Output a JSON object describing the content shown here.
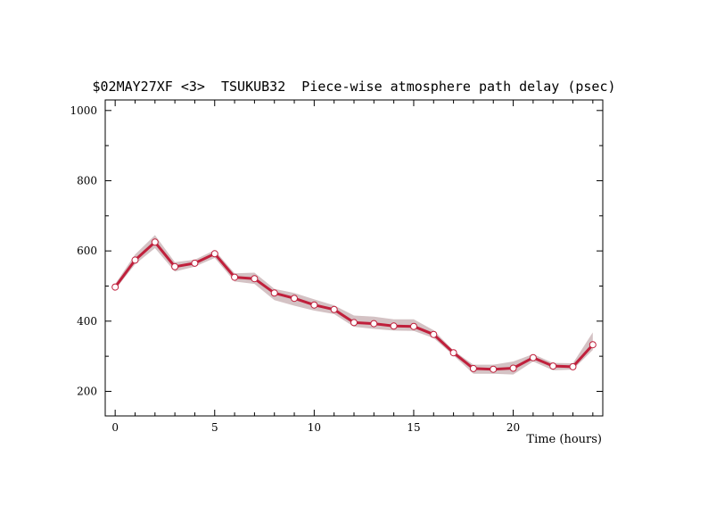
{
  "chart_data": {
    "type": "line",
    "title": "$02MAY27XF <3>  TSUKUB32  Piece-wise atmosphere path delay (psec)",
    "xlabel": "Time (hours)",
    "ylabel": "",
    "xlim": [
      -0.5,
      24.5
    ],
    "ylim": [
      130,
      1030
    ],
    "x_ticks": [
      0,
      5,
      10,
      15,
      20
    ],
    "y_ticks": [
      200,
      400,
      600,
      800,
      1000
    ],
    "grid": false,
    "legend": "none",
    "colors": {
      "line": "#c0203c",
      "band": "#d4c2c4",
      "marker_fill": "#ffffff",
      "axis": "#000000"
    },
    "series": [
      {
        "x": [
          0,
          1,
          2,
          3,
          4,
          5,
          6,
          7,
          8,
          9,
          10,
          11,
          12,
          13,
          14,
          15,
          16,
          17,
          18,
          19,
          20,
          21,
          22,
          23,
          24
        ],
        "values": [
          497,
          574,
          625,
          555,
          565,
          592,
          525,
          521,
          480,
          465,
          446,
          433,
          396,
          393,
          386,
          385,
          362,
          310,
          265,
          263,
          266,
          296,
          272,
          270,
          333
        ],
        "lower": [
          490,
          562,
          608,
          541,
          555,
          580,
          513,
          506,
          460,
          444,
          430,
          420,
          384,
          378,
          373,
          372,
          352,
          302,
          250,
          250,
          248,
          285,
          260,
          262,
          318
        ],
        "upper": [
          506,
          590,
          645,
          568,
          575,
          602,
          536,
          538,
          492,
          480,
          462,
          445,
          416,
          413,
          405,
          405,
          374,
          316,
          276,
          276,
          285,
          306,
          281,
          280,
          368
        ]
      }
    ]
  }
}
